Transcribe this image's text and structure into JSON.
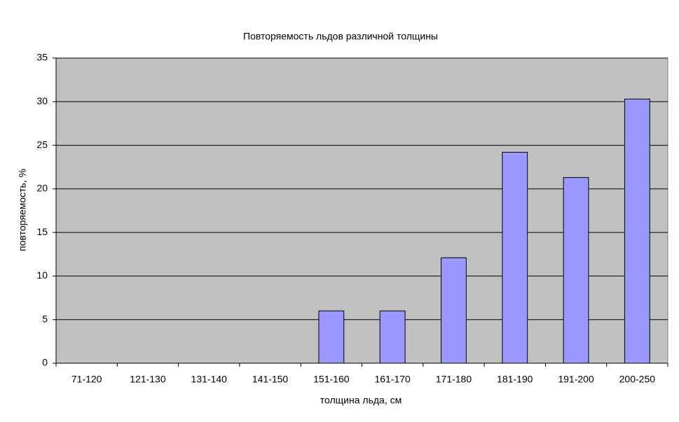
{
  "chart_data": {
    "type": "bar",
    "title": "Повторяемость льдов различной толщины",
    "x_label": "толщина льда, см",
    "y_label": "повторяемость, %",
    "categories": [
      "71-120",
      "121-130",
      "131-140",
      "141-150",
      "151-160",
      "161-170",
      "171-180",
      "181-190",
      "191-200",
      "200-250"
    ],
    "values": [
      0,
      0,
      0,
      0,
      6,
      6,
      12.1,
      24.2,
      21.3,
      30.3
    ],
    "color": "#9999ff",
    "ylim": [
      0,
      35
    ],
    "yticks": [
      0,
      5,
      10,
      15,
      20,
      25,
      30,
      35
    ],
    "grid": true
  }
}
